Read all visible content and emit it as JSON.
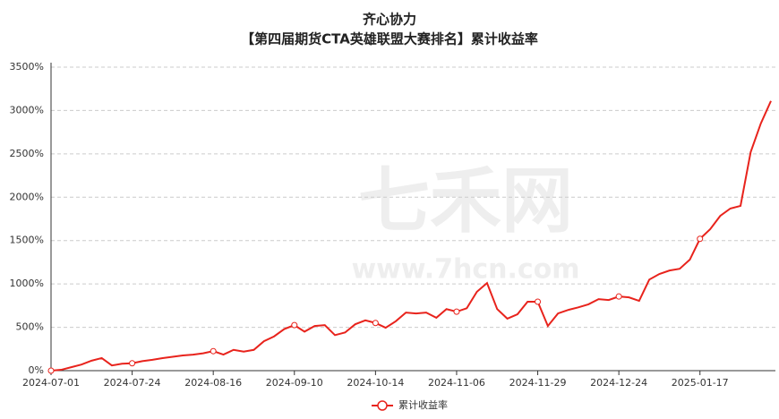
{
  "chart_data": {
    "type": "line",
    "title": "齐心协力",
    "subtitle": "【第四届期货CTA英雄联盟大赛排名】累计收益率",
    "watermark": [
      "七禾网",
      "www.7hcn.com"
    ],
    "categories": [
      "2024-07-01",
      null,
      null,
      null,
      null,
      null,
      null,
      null,
      "2024-07-24",
      null,
      null,
      null,
      null,
      null,
      null,
      null,
      "2024-08-16",
      null,
      null,
      null,
      null,
      null,
      null,
      null,
      "2024-09-10",
      null,
      null,
      null,
      null,
      null,
      null,
      null,
      "2024-10-14",
      null,
      null,
      null,
      null,
      null,
      null,
      null,
      "2024-11-06",
      null,
      null,
      null,
      null,
      null,
      null,
      null,
      "2024-11-29",
      null,
      null,
      null,
      null,
      null,
      null,
      null,
      "2024-12-24",
      null,
      null,
      null,
      null,
      null,
      null,
      null,
      "2025-01-17",
      null,
      null,
      null,
      null,
      null,
      null,
      null
    ],
    "series": [
      {
        "name": "累计收益率",
        "color": "#e8231c",
        "values": [
          0,
          10,
          40,
          70,
          115,
          145,
          60,
          80,
          85,
          110,
          125,
          145,
          160,
          175,
          185,
          200,
          225,
          185,
          240,
          220,
          240,
          340,
          395,
          480,
          525,
          450,
          515,
          525,
          410,
          440,
          535,
          580,
          550,
          495,
          570,
          670,
          660,
          670,
          610,
          710,
          680,
          720,
          910,
          1010,
          710,
          600,
          650,
          795,
          795,
          515,
          660,
          700,
          730,
          765,
          825,
          815,
          855,
          845,
          805,
          1050,
          1115,
          1155,
          1175,
          1280,
          1520,
          1630,
          1785,
          1870,
          1900,
          2520,
          2850,
          3110
        ]
      }
    ],
    "ylim": [
      0,
      3500
    ],
    "yticks": [
      {
        "value": 0,
        "label": "0%"
      },
      {
        "value": 500,
        "label": "500%"
      },
      {
        "value": 1000,
        "label": "1000%"
      },
      {
        "value": 1500,
        "label": "1500%"
      },
      {
        "value": 2000,
        "label": "2000%"
      },
      {
        "value": 2500,
        "label": "2500%"
      },
      {
        "value": 3000,
        "label": "3000%"
      },
      {
        "value": 3500,
        "label": "3500%"
      }
    ],
    "grid": true,
    "legend": "bottom"
  }
}
